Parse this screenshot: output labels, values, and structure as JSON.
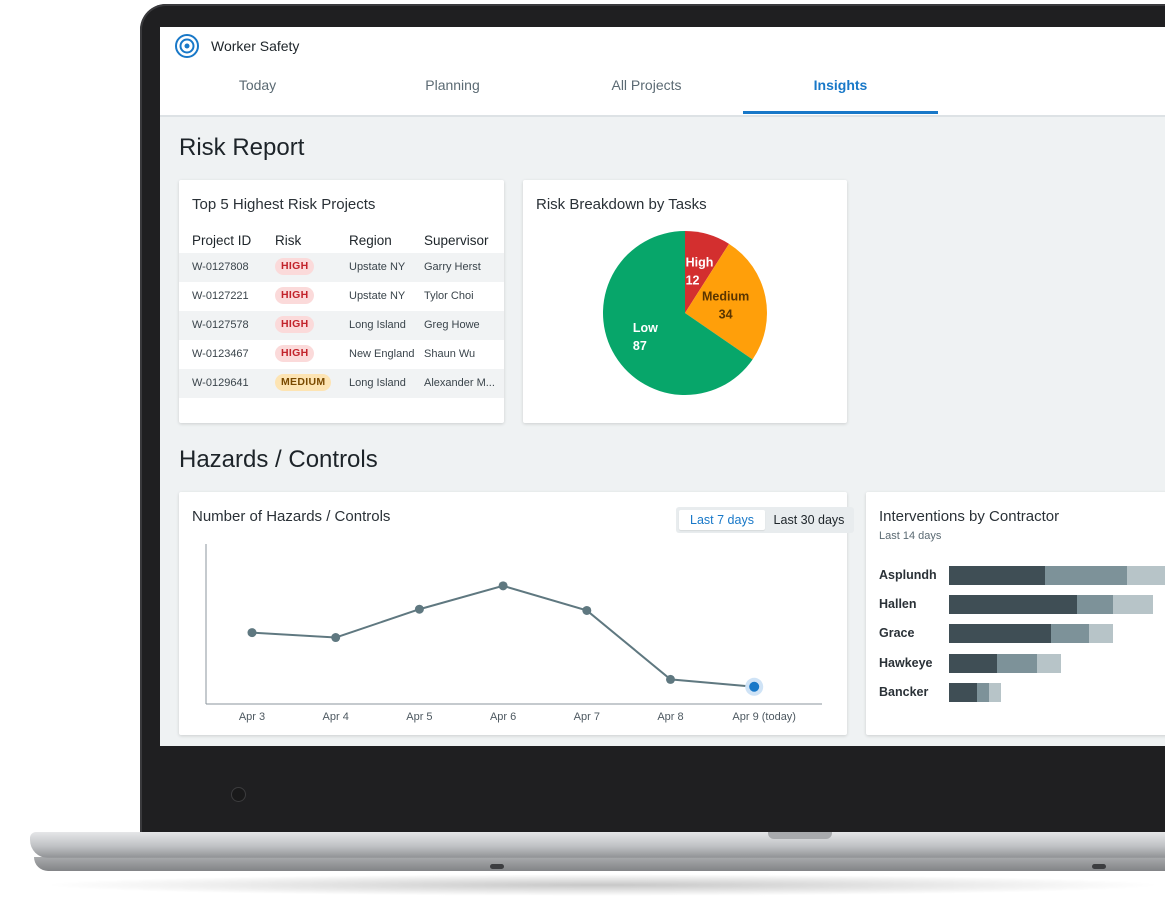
{
  "app": {
    "title": "Worker Safety"
  },
  "tabs": [
    {
      "label": "Today"
    },
    {
      "label": "Planning"
    },
    {
      "label": "All Projects"
    },
    {
      "label": "Insights",
      "active": true
    }
  ],
  "risk_report": {
    "title": "Risk Report",
    "top_projects": {
      "title": "Top 5 Highest Risk Projects",
      "columns": [
        "Project ID",
        "Risk",
        "Region",
        "Supervisor"
      ],
      "rows": [
        {
          "id": "W-0127808",
          "risk": "HIGH",
          "region": "Upstate NY",
          "supervisor": "Garry Herst"
        },
        {
          "id": "W-0127221",
          "risk": "HIGH",
          "region": "Upstate NY",
          "supervisor": "Tylor Choi"
        },
        {
          "id": "W-0127578",
          "risk": "HIGH",
          "region": "Long Island",
          "supervisor": "Greg Howe"
        },
        {
          "id": "W-0123467",
          "risk": "HIGH",
          "region": "New England",
          "supervisor": "Shaun Wu"
        },
        {
          "id": "W-0129641",
          "risk": "MEDIUM",
          "region": "Long Island",
          "supervisor": "Alexander M..."
        }
      ]
    },
    "breakdown": {
      "title": "Risk Breakdown by Tasks"
    }
  },
  "hazards": {
    "title": "Hazards / Controls",
    "line_card": {
      "title": "Number of Hazards / Controls",
      "range_buttons": [
        {
          "label": "Last 7 days",
          "active": true
        },
        {
          "label": "Last 30 days",
          "active": false
        }
      ]
    },
    "interventions": {
      "title": "Interventions by Contractor",
      "subtitle": "Last 14 days"
    }
  },
  "colors": {
    "accent": "#1878c8",
    "high": "#d32f2f",
    "medium": "#ff9f0a",
    "low": "#07a66a",
    "line": "#5f7880",
    "bar_dark": "#3f4e55",
    "bar_mid": "#7d9299",
    "bar_light": "#b7c4c8"
  },
  "chart_data": [
    {
      "type": "pie",
      "title": "Risk Breakdown by Tasks",
      "slices": [
        {
          "label": "High",
          "value": 12,
          "color": "#d32f2f"
        },
        {
          "label": "Medium",
          "value": 34,
          "color": "#ff9f0a"
        },
        {
          "label": "Low",
          "value": 87,
          "color": "#07a66a"
        }
      ]
    },
    {
      "type": "line",
      "title": "Number of Hazards / Controls",
      "categories": [
        "Apr 3",
        "Apr 4",
        "Apr 5",
        "Apr 6",
        "Apr 7",
        "Apr 8",
        "Apr 9 (today)"
      ],
      "series": [
        {
          "values": [
            58,
            54,
            77,
            96,
            76,
            20,
            14
          ]
        }
      ],
      "ylim": [
        0,
        130
      ],
      "grid": false
    },
    {
      "type": "bar",
      "title": "Interventions by Contractor",
      "categories": [
        "Asplundh",
        "Hallen",
        "Grace",
        "Hawkeye",
        "Bancker"
      ],
      "series": [
        {
          "values": [
            48,
            64,
            51,
            24,
            14
          ]
        },
        {
          "values": [
            41,
            18,
            19,
            20,
            6
          ]
        },
        {
          "values": [
            19,
            20,
            12,
            12,
            6
          ]
        }
      ]
    }
  ]
}
